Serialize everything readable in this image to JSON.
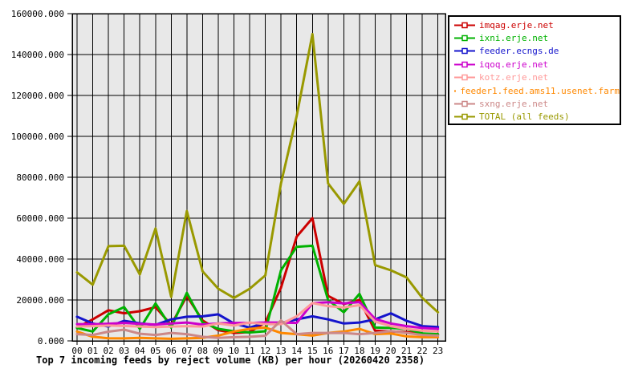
{
  "title": "Top 7 incoming feeds by reject volume (KB) per hour (20260420 2358)",
  "colors": {
    "page_bg": "#ffffff",
    "plot_bg": "#e8e8e8",
    "grid": "#000000",
    "border": "#000000",
    "text": "#000000"
  },
  "chart_data": {
    "type": "line",
    "title": "Top 7 incoming feeds by reject volume (KB) per hour (20260420 2358)",
    "xlabel": "",
    "ylabel": "",
    "x": [
      "00",
      "01",
      "02",
      "03",
      "04",
      "05",
      "06",
      "07",
      "08",
      "09",
      "10",
      "11",
      "12",
      "13",
      "14",
      "15",
      "16",
      "17",
      "18",
      "19",
      "20",
      "21",
      "22",
      "23"
    ],
    "ylim": [
      0,
      160000
    ],
    "ytick_step": 20000,
    "ytick_labels": [
      "0.000",
      "20000.000",
      "40000.000",
      "60000.000",
      "80000.000",
      "100000.000",
      "120000.000",
      "140000.000",
      "160000.000"
    ],
    "grid": "both",
    "legend_position": "top-right",
    "series": [
      {
        "name": "imqag.erje.net",
        "color": "#cc0000",
        "values": [
          6500,
          10500,
          15000,
          13500,
          14500,
          16500,
          7800,
          22000,
          10000,
          5200,
          3900,
          4300,
          9000,
          26000,
          51000,
          60000,
          22000,
          18000,
          20000,
          5000,
          4600,
          4300,
          3300,
          3000
        ]
      },
      {
        "name": "ixni.erje.net",
        "color": "#00b200",
        "values": [
          6300,
          4600,
          13000,
          16500,
          5900,
          18300,
          6500,
          23500,
          9000,
          5900,
          4700,
          4100,
          4700,
          34500,
          46000,
          46500,
          20000,
          14000,
          23000,
          6500,
          6300,
          5900,
          3600,
          3300
        ]
      },
      {
        "name": "feeder.ecngs.de",
        "color": "#1414cc",
        "values": [
          11800,
          8500,
          7000,
          9800,
          8600,
          7800,
          10500,
          11800,
          12000,
          13000,
          8500,
          6500,
          8800,
          8800,
          10500,
          12000,
          10500,
          8500,
          9000,
          10500,
          13500,
          9800,
          7200,
          6800
        ]
      },
      {
        "name": "iqoq.erje.net",
        "color": "#cc00cc",
        "values": [
          8200,
          8100,
          8400,
          8800,
          8300,
          8000,
          8500,
          9000,
          8000,
          8500,
          8800,
          8800,
          9000,
          9000,
          8800,
          18400,
          18900,
          18300,
          19000,
          10700,
          8500,
          7200,
          6300,
          5900
        ]
      },
      {
        "name": "kotz.erje.net",
        "color": "#ff9999",
        "values": [
          7000,
          7200,
          7500,
          7300,
          7000,
          6800,
          7000,
          7200,
          7000,
          8500,
          7500,
          9000,
          8200,
          8200,
          12000,
          18500,
          17000,
          16300,
          17500,
          9400,
          7200,
          5900,
          5000,
          4600
        ]
      },
      {
        "name": "feeder1.feed.ams11.usenet.farm",
        "color": "#ff8800",
        "values": [
          4600,
          2000,
          1300,
          1200,
          1500,
          1200,
          1000,
          1200,
          1500,
          2600,
          4600,
          5900,
          6500,
          3900,
          3300,
          2600,
          3900,
          4600,
          5900,
          3300,
          3600,
          2200,
          1800,
          1800
        ]
      },
      {
        "name": "sxng.erje.net",
        "color": "#cc8888",
        "values": [
          3300,
          2900,
          4500,
          5500,
          3500,
          2900,
          3900,
          3300,
          2000,
          1500,
          1800,
          2000,
          2500,
          10000,
          3300,
          3900,
          3900,
          3900,
          3300,
          3900,
          4800,
          3900,
          2900,
          2600
        ]
      },
      {
        "name": "TOTAL (all feeds)",
        "color": "#999900",
        "values": [
          33500,
          27500,
          46300,
          46500,
          32500,
          55000,
          21500,
          63500,
          34000,
          25500,
          21000,
          25500,
          32000,
          77000,
          110000,
          150000,
          77000,
          67000,
          78000,
          37000,
          34500,
          31000,
          21000,
          14000
        ]
      }
    ]
  }
}
